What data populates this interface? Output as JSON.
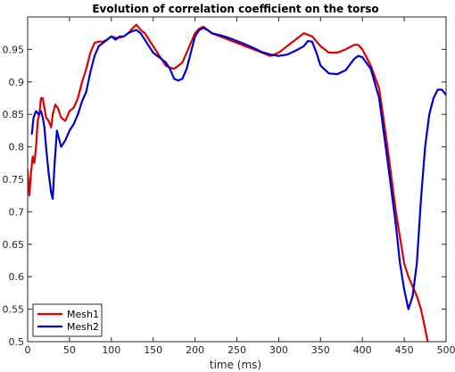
{
  "chart_data": {
    "type": "line",
    "title": "Evolution of correlation coefficient on the torso",
    "xlabel": "time (ms)",
    "ylabel": "",
    "xlim": [
      0,
      500
    ],
    "ylim": [
      0.5,
      1.0
    ],
    "xticks": [
      "0",
      "50",
      "100",
      "150",
      "200",
      "250",
      "300",
      "350",
      "400",
      "450",
      "500"
    ],
    "yticks": [
      "0.5",
      "0.55",
      "0.6",
      "0.65",
      "0.7",
      "0.75",
      "0.8",
      "0.85",
      "0.9",
      "0.95"
    ],
    "grid": false,
    "legend": "bottom-left",
    "series": [
      {
        "name": "Mesh1",
        "color": "#dd0000",
        "x": [
          0,
          2,
          4,
          6,
          8,
          10,
          12,
          14,
          16,
          18,
          20,
          22,
          25,
          28,
          30,
          33,
          36,
          40,
          45,
          50,
          55,
          60,
          65,
          70,
          75,
          80,
          85,
          90,
          95,
          100,
          105,
          110,
          115,
          120,
          125,
          130,
          135,
          140,
          145,
          150,
          155,
          160,
          165,
          170,
          175,
          180,
          185,
          190,
          195,
          200,
          205,
          210,
          215,
          220,
          230,
          240,
          250,
          260,
          270,
          280,
          290,
          300,
          310,
          320,
          330,
          340,
          350,
          360,
          370,
          380,
          390,
          395,
          400,
          410,
          420,
          430,
          440,
          450,
          455,
          460,
          465,
          470,
          475,
          478
        ],
        "y": [
          0.765,
          0.725,
          0.76,
          0.785,
          0.775,
          0.8,
          0.84,
          0.85,
          0.875,
          0.875,
          0.86,
          0.845,
          0.84,
          0.83,
          0.85,
          0.865,
          0.86,
          0.845,
          0.84,
          0.855,
          0.86,
          0.875,
          0.9,
          0.92,
          0.945,
          0.96,
          0.962,
          0.962,
          0.965,
          0.97,
          0.968,
          0.968,
          0.97,
          0.975,
          0.982,
          0.988,
          0.98,
          0.975,
          0.965,
          0.955,
          0.945,
          0.935,
          0.925,
          0.922,
          0.92,
          0.925,
          0.93,
          0.945,
          0.96,
          0.975,
          0.982,
          0.985,
          0.98,
          0.975,
          0.97,
          0.965,
          0.96,
          0.955,
          0.95,
          0.945,
          0.94,
          0.945,
          0.955,
          0.965,
          0.975,
          0.97,
          0.955,
          0.945,
          0.945,
          0.95,
          0.957,
          0.957,
          0.95,
          0.925,
          0.89,
          0.8,
          0.7,
          0.62,
          0.6,
          0.585,
          0.57,
          0.55,
          0.52,
          0.5
        ]
      },
      {
        "name": "Mesh2",
        "color": "#0000cc",
        "x": [
          5,
          7,
          10,
          13,
          16,
          18,
          20,
          22,
          25,
          28,
          30,
          32,
          35,
          38,
          40,
          45,
          50,
          55,
          60,
          65,
          70,
          75,
          80,
          85,
          90,
          95,
          100,
          105,
          110,
          115,
          120,
          125,
          130,
          135,
          140,
          145,
          150,
          155,
          160,
          165,
          170,
          175,
          180,
          185,
          190,
          195,
          200,
          205,
          210,
          215,
          220,
          230,
          240,
          250,
          260,
          270,
          280,
          290,
          300,
          310,
          320,
          330,
          335,
          340,
          345,
          350,
          360,
          370,
          380,
          390,
          395,
          400,
          410,
          420,
          430,
          440,
          445,
          450,
          455,
          460,
          465,
          470,
          475,
          480,
          485,
          490,
          495,
          500
        ],
        "y": [
          0.82,
          0.845,
          0.855,
          0.85,
          0.855,
          0.845,
          0.83,
          0.8,
          0.76,
          0.73,
          0.72,
          0.77,
          0.825,
          0.81,
          0.8,
          0.81,
          0.825,
          0.835,
          0.85,
          0.87,
          0.885,
          0.915,
          0.94,
          0.955,
          0.96,
          0.965,
          0.97,
          0.965,
          0.97,
          0.97,
          0.975,
          0.978,
          0.98,
          0.975,
          0.965,
          0.955,
          0.945,
          0.94,
          0.935,
          0.93,
          0.92,
          0.905,
          0.902,
          0.905,
          0.92,
          0.945,
          0.97,
          0.98,
          0.983,
          0.98,
          0.975,
          0.972,
          0.968,
          0.963,
          0.958,
          0.952,
          0.946,
          0.942,
          0.94,
          0.942,
          0.948,
          0.955,
          0.963,
          0.962,
          0.945,
          0.925,
          0.913,
          0.912,
          0.918,
          0.935,
          0.94,
          0.938,
          0.92,
          0.875,
          0.78,
          0.68,
          0.62,
          0.58,
          0.55,
          0.57,
          0.62,
          0.72,
          0.8,
          0.85,
          0.875,
          0.888,
          0.888,
          0.88
        ]
      }
    ]
  }
}
